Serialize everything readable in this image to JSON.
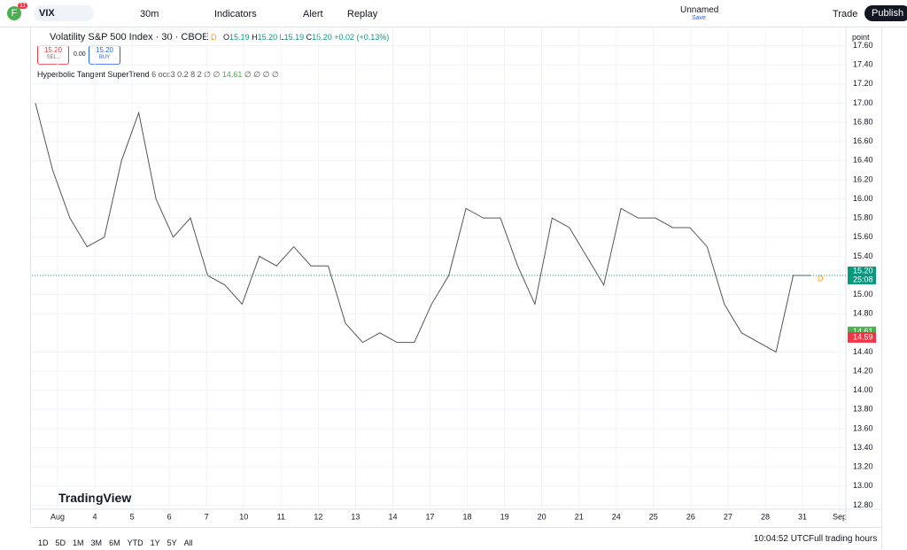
{
  "toolbar": {
    "avatar": "F",
    "badge": "11",
    "symbol": "VIX",
    "interval": "30m",
    "indicators": "Indicators",
    "alert": "Alert",
    "replay": "Replay",
    "layout_name": "Unnamed",
    "save": "Save",
    "trade": "Trade",
    "publish": "Publish"
  },
  "legend": {
    "title": "Volatility S&P 500 Index · 30 · CBOE",
    "session": "D",
    "o_label": "O",
    "o": "15.19",
    "h_label": "H",
    "h": "15.20",
    "l_label": "L",
    "l": "15.19",
    "c_label": "C",
    "c": "15.20",
    "change": "+0.02 (+0.13%)",
    "sell_price": "15.20",
    "sell": "SELL",
    "spread": "0.00",
    "buy_price": "15.20",
    "buy": "BUY",
    "indicator_name": "Hyperbolic Tangent SuperTrend",
    "indicator_params": "6 occ3 0.2 8 2 ∅ ∅",
    "indicator_value": "14.61",
    "indicator_rest": "∅ ∅ ∅ ∅"
  },
  "chart": {
    "type": "line",
    "unit": "point",
    "color": "#555555",
    "ylim": [
      12.6,
      17.8
    ],
    "yticks": [
      {
        "value": 17.6,
        "label": "17.60"
      },
      {
        "value": 17.4,
        "label": "17.40"
      },
      {
        "value": 17.2,
        "label": "17.20"
      },
      {
        "value": 17.0,
        "label": "17.00"
      },
      {
        "value": 16.8,
        "label": "16.80"
      },
      {
        "value": 16.6,
        "label": "16.60"
      },
      {
        "value": 16.4,
        "label": "16.40"
      },
      {
        "value": 16.2,
        "label": "16.20"
      },
      {
        "value": 16.0,
        "label": "16.00"
      },
      {
        "value": 15.8,
        "label": "15.80"
      },
      {
        "value": 15.6,
        "label": "15.60"
      },
      {
        "value": 15.4,
        "label": "15.40"
      },
      {
        "value": 15.0,
        "label": "15.00"
      },
      {
        "value": 14.8,
        "label": "14.80"
      },
      {
        "value": 14.4,
        "label": "14.40"
      },
      {
        "value": 14.2,
        "label": "14.20"
      },
      {
        "value": 14.0,
        "label": "14.00"
      },
      {
        "value": 13.8,
        "label": "13.80"
      },
      {
        "value": 13.6,
        "label": "13.60"
      },
      {
        "value": 13.4,
        "label": "13.40"
      },
      {
        "value": 13.2,
        "label": "13.20"
      },
      {
        "value": 13.0,
        "label": "13.00"
      },
      {
        "value": 12.8,
        "label": "12.80"
      }
    ],
    "categories": [
      "Aug",
      "4",
      "5",
      "6",
      "7",
      "10",
      "11",
      "12",
      "13",
      "14",
      "17",
      "18",
      "19",
      "20",
      "21",
      "24",
      "25",
      "26",
      "27",
      "28",
      "31",
      "Sep"
    ],
    "close": [
      17.0,
      16.3,
      15.8,
      15.5,
      15.6,
      16.4,
      16.9,
      16.0,
      15.6,
      15.8,
      15.2,
      15.1,
      14.9,
      15.4,
      15.3,
      15.5,
      15.3,
      15.3,
      14.7,
      14.5,
      14.6,
      14.5,
      14.5,
      14.9,
      15.2,
      15.9,
      15.8,
      15.8,
      15.3,
      14.9,
      15.8,
      15.7,
      15.4,
      15.1,
      15.9,
      15.8,
      15.8,
      15.7,
      15.7,
      15.5,
      14.9,
      14.6,
      14.5,
      14.4,
      15.2,
      15.2
    ],
    "last_price": {
      "value": 15.2,
      "label": "15.20"
    },
    "countdown": "25:08",
    "trend_up": {
      "value": 14.61,
      "label": "14.61"
    },
    "trend_down": {
      "value": 14.59,
      "label": "14.59"
    },
    "watermark": "TradingView",
    "session_marker": "D"
  },
  "bottom": {
    "ranges": [
      "1D",
      "5D",
      "1M",
      "3M",
      "6M",
      "YTD",
      "1Y",
      "5Y",
      "All"
    ],
    "time": "10:04:52 UTC",
    "session": "Full trading hours"
  }
}
